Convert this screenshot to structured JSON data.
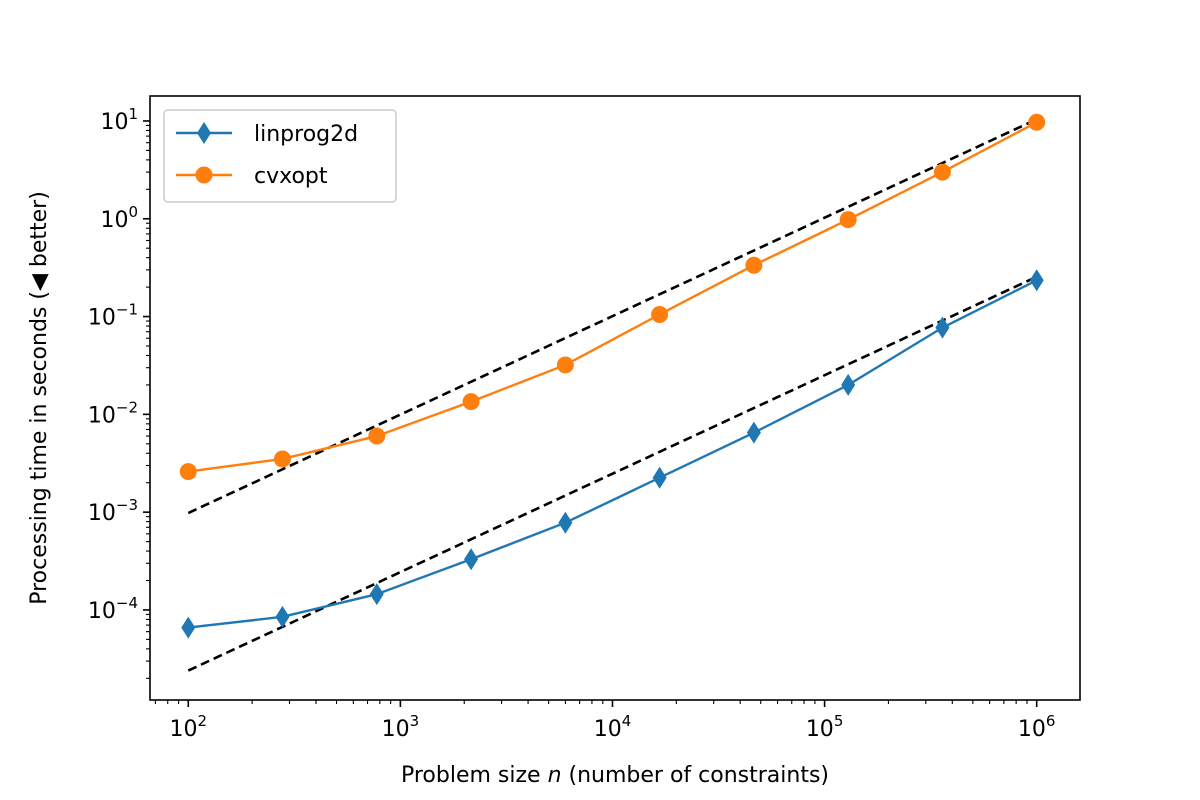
{
  "chart_data": {
    "type": "line",
    "title": "",
    "xlabel_prefix": "Problem size ",
    "xlabel_var": "n",
    "xlabel_suffix": " (number of constraints)",
    "ylabel": "Processing time in seconds (◀ better)",
    "xscale": "log",
    "yscale": "log",
    "xlim": [
      66,
      1600000
    ],
    "ylim": [
      1.2e-05,
      18
    ],
    "x_ticks": [
      {
        "value": 100,
        "base": "10",
        "exp": "2"
      },
      {
        "value": 1000,
        "base": "10",
        "exp": "3"
      },
      {
        "value": 10000,
        "base": "10",
        "exp": "4"
      },
      {
        "value": 100000,
        "base": "10",
        "exp": "5"
      },
      {
        "value": 1000000,
        "base": "10",
        "exp": "6"
      }
    ],
    "y_ticks": [
      {
        "value": 0.0001,
        "base": "10",
        "exp": "−4"
      },
      {
        "value": 0.001,
        "base": "10",
        "exp": "−3"
      },
      {
        "value": 0.01,
        "base": "10",
        "exp": "−2"
      },
      {
        "value": 0.1,
        "base": "10",
        "exp": "−1"
      },
      {
        "value": 1,
        "base": "10",
        "exp": "0"
      },
      {
        "value": 10,
        "base": "10",
        "exp": "1"
      }
    ],
    "grid": false,
    "legend_position": "upper-left",
    "series": [
      {
        "name": "linprog2d",
        "color": "#1f77b4",
        "marker": "thin-diamond",
        "x": [
          100,
          278,
          774,
          2154,
          5995,
          16681,
          46416,
          129155,
          359381,
          1000000
        ],
        "y": [
          6.6e-05,
          8.5e-05,
          0.000145,
          0.00033,
          0.00078,
          0.00225,
          0.0065,
          0.02,
          0.077,
          0.235
        ]
      },
      {
        "name": "cvxopt",
        "color": "#ff7f0e",
        "marker": "circle",
        "x": [
          100,
          278,
          774,
          2154,
          5995,
          16681,
          46416,
          129155,
          359381,
          1000000
        ],
        "y": [
          0.0026,
          0.0035,
          0.006,
          0.0135,
          0.032,
          0.105,
          0.335,
          0.98,
          3.0,
          9.7
        ]
      }
    ],
    "reference_lines": [
      {
        "style": "dashed",
        "color": "#000000",
        "x": [
          100,
          1000000
        ],
        "y": [
          0.00098,
          10.4
        ]
      },
      {
        "style": "dashed",
        "color": "#000000",
        "x": [
          100,
          1000000
        ],
        "y": [
          2.4e-05,
          0.255
        ]
      }
    ]
  }
}
